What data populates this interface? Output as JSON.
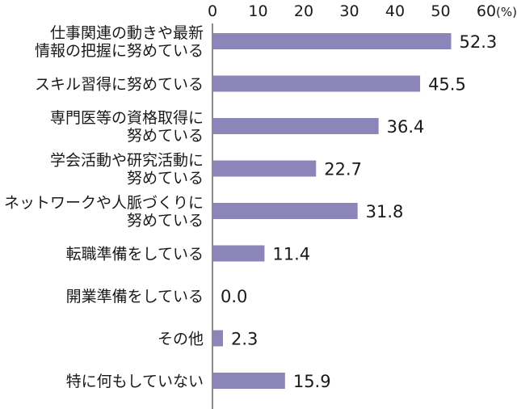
{
  "chart_data": {
    "type": "bar",
    "orientation": "horizontal",
    "categories": [
      [
        "仕事関連の動きや最新",
        "情報の把握に努めている"
      ],
      [
        "スキル習得に努めている"
      ],
      [
        "専門医等の資格取得に",
        "努めている"
      ],
      [
        "学会活動や研究活動に",
        "努めている"
      ],
      [
        "ネットワークや人脈づくりに",
        "努めている"
      ],
      [
        "転職準備をしている"
      ],
      [
        "開業準備をしている"
      ],
      [
        "その他"
      ],
      [
        "特に何もしていない"
      ]
    ],
    "values": [
      52.3,
      45.5,
      36.4,
      22.7,
      31.8,
      11.4,
      0.0,
      2.3,
      15.9
    ],
    "value_labels": [
      "52.3",
      "45.5",
      "36.4",
      "22.7",
      "31.8",
      "11.4",
      "0.0",
      "2.3",
      "15.9"
    ],
    "xticks": [
      "0",
      "10",
      "20",
      "30",
      "40",
      "50",
      "60"
    ],
    "x_unit": "(%)",
    "xlim": [
      0,
      60
    ],
    "axis_position": "top",
    "grid": false,
    "bar_color": "#8b85b9",
    "axis_color": "#8a8a8a"
  }
}
